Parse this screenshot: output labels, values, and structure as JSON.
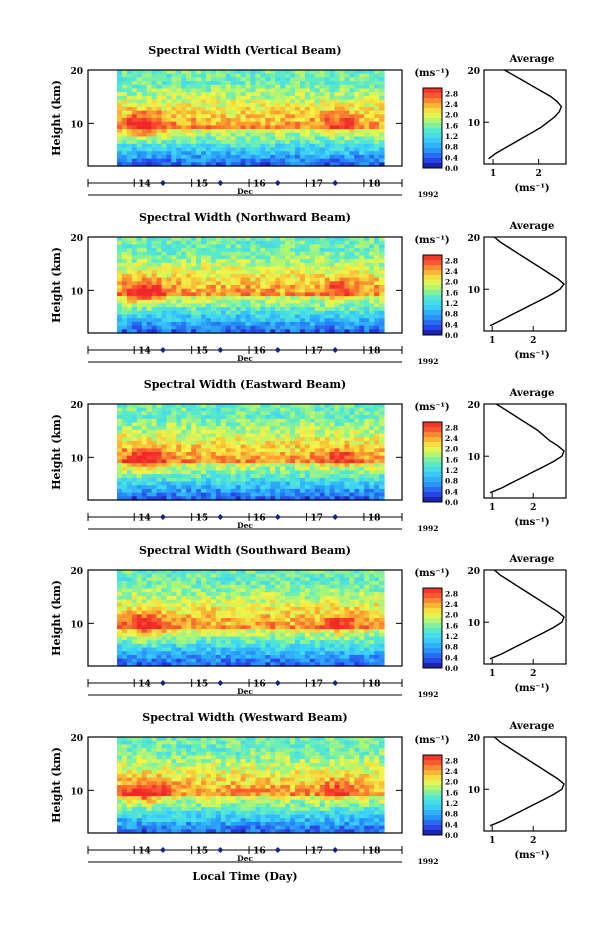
{
  "figure": {
    "xlabel": "Local Time (Day)",
    "month": "Dec",
    "year": "1992",
    "height_label": "Height (km)",
    "average_title": "Average",
    "colorbar_unit": "(ms⁻¹)",
    "avg_unit": "(ms⁻¹)"
  },
  "chart_data": [
    {
      "type": "heatmap",
      "title": "Spectral Width (Vertical Beam)",
      "x_tick_labels": [
        "14",
        "15",
        "16",
        "17",
        "18"
      ],
      "x_range_day": [
        13.7,
        18.35
      ],
      "ylim_km": [
        2,
        20
      ],
      "y_tick_labels": [
        "10",
        "20"
      ],
      "colorbar_ticks": [
        "0.0",
        "0.4",
        "0.8",
        "1.2",
        "1.6",
        "2.0",
        "2.4",
        "2.8"
      ],
      "colorbar_range": [
        0.0,
        3.0
      ],
      "average_profile": {
        "xlim": [
          0.8,
          2.6
        ],
        "x_tick_labels": [
          "1",
          "2"
        ],
        "height_km": [
          3,
          4,
          5,
          6,
          7,
          8,
          9,
          10,
          11,
          12,
          13,
          14,
          15,
          16,
          17,
          18,
          19,
          20
        ],
        "spectral_width": [
          0.9,
          1.05,
          1.25,
          1.45,
          1.65,
          1.85,
          2.05,
          2.2,
          2.35,
          2.45,
          2.5,
          2.4,
          2.25,
          2.05,
          1.85,
          1.65,
          1.45,
          1.25
        ]
      }
    },
    {
      "type": "heatmap",
      "title": "Spectral Width (Northward Beam)",
      "x_tick_labels": [
        "14",
        "15",
        "16",
        "17",
        "18"
      ],
      "x_range_day": [
        13.7,
        18.35
      ],
      "ylim_km": [
        2,
        20
      ],
      "y_tick_labels": [
        "10",
        "20"
      ],
      "colorbar_ticks": [
        "0.0",
        "0.4",
        "0.8",
        "1.2",
        "1.6",
        "2.0",
        "2.4",
        "2.8"
      ],
      "colorbar_range": [
        0.0,
        3.0
      ],
      "average_profile": {
        "xlim": [
          0.8,
          2.8
        ],
        "x_tick_labels": [
          "1",
          "2"
        ],
        "height_km": [
          3,
          4,
          5,
          6,
          7,
          8,
          9,
          10,
          11,
          12,
          13,
          14,
          15,
          16,
          17,
          18,
          19,
          20
        ],
        "spectral_width": [
          0.95,
          1.2,
          1.45,
          1.7,
          1.95,
          2.2,
          2.45,
          2.65,
          2.75,
          2.6,
          2.4,
          2.2,
          2.0,
          1.8,
          1.6,
          1.4,
          1.2,
          1.05
        ]
      }
    },
    {
      "type": "heatmap",
      "title": "Spectral Width (Eastward Beam)",
      "x_tick_labels": [
        "14",
        "15",
        "16",
        "17",
        "18"
      ],
      "x_range_day": [
        13.7,
        18.35
      ],
      "ylim_km": [
        2,
        20
      ],
      "y_tick_labels": [
        "10",
        "20"
      ],
      "colorbar_ticks": [
        "0.0",
        "0.4",
        "0.8",
        "1.2",
        "1.6",
        "2.0",
        "2.4",
        "2.8"
      ],
      "colorbar_range": [
        0.0,
        3.0
      ],
      "average_profile": {
        "xlim": [
          0.8,
          2.8
        ],
        "x_tick_labels": [
          "1",
          "2"
        ],
        "height_km": [
          3,
          4,
          5,
          6,
          7,
          8,
          9,
          10,
          11,
          12,
          13,
          14,
          15,
          16,
          17,
          18,
          19,
          20
        ],
        "spectral_width": [
          0.95,
          1.25,
          1.5,
          1.75,
          2.0,
          2.25,
          2.5,
          2.7,
          2.75,
          2.6,
          2.4,
          2.25,
          2.1,
          1.9,
          1.7,
          1.5,
          1.3,
          1.1
        ]
      }
    },
    {
      "type": "heatmap",
      "title": "Spectral Width (Southward Beam)",
      "x_tick_labels": [
        "14",
        "15",
        "16",
        "17",
        "18"
      ],
      "x_range_day": [
        13.7,
        18.35
      ],
      "ylim_km": [
        2,
        20
      ],
      "y_tick_labels": [
        "10",
        "20"
      ],
      "colorbar_ticks": [
        "0.0",
        "0.4",
        "0.8",
        "1.2",
        "1.6",
        "2.0",
        "2.4",
        "2.8"
      ],
      "colorbar_range": [
        0.0,
        3.0
      ],
      "average_profile": {
        "xlim": [
          0.8,
          2.8
        ],
        "x_tick_labels": [
          "1",
          "2"
        ],
        "height_km": [
          3,
          4,
          5,
          6,
          7,
          8,
          9,
          10,
          11,
          12,
          13,
          14,
          15,
          16,
          17,
          18,
          19,
          20
        ],
        "spectral_width": [
          0.95,
          1.25,
          1.5,
          1.75,
          2.0,
          2.25,
          2.5,
          2.7,
          2.75,
          2.6,
          2.4,
          2.2,
          2.0,
          1.8,
          1.6,
          1.4,
          1.2,
          1.05
        ]
      }
    },
    {
      "type": "heatmap",
      "title": "Spectral Width (Westward Beam)",
      "x_tick_labels": [
        "14",
        "15",
        "16",
        "17",
        "18"
      ],
      "x_range_day": [
        13.7,
        18.35
      ],
      "ylim_km": [
        2,
        20
      ],
      "y_tick_labels": [
        "10",
        "20"
      ],
      "colorbar_ticks": [
        "0.0",
        "0.4",
        "0.8",
        "1.2",
        "1.6",
        "2.0",
        "2.4",
        "2.8"
      ],
      "colorbar_range": [
        0.0,
        3.0
      ],
      "average_profile": {
        "xlim": [
          0.8,
          2.8
        ],
        "x_tick_labels": [
          "1",
          "2"
        ],
        "height_km": [
          3,
          4,
          5,
          6,
          7,
          8,
          9,
          10,
          11,
          12,
          13,
          14,
          15,
          16,
          17,
          18,
          19,
          20
        ],
        "spectral_width": [
          0.95,
          1.25,
          1.5,
          1.75,
          2.0,
          2.25,
          2.5,
          2.7,
          2.75,
          2.6,
          2.4,
          2.2,
          2.0,
          1.8,
          1.6,
          1.4,
          1.2,
          1.05
        ]
      }
    }
  ]
}
